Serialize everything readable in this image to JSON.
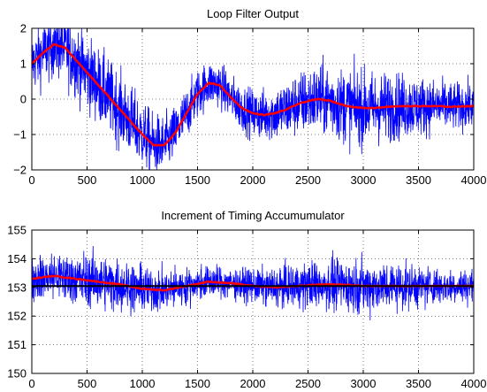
{
  "chart_data": [
    {
      "type": "line",
      "title": "Loop Filter Output",
      "xlabel": "",
      "ylabel": "",
      "xlim": [
        0,
        4000
      ],
      "ylim": [
        -2,
        2
      ],
      "xticks": [
        0,
        500,
        1000,
        1500,
        2000,
        2500,
        3000,
        3500,
        4000
      ],
      "yticks": [
        -2,
        -1,
        0,
        1,
        2
      ],
      "grid": true,
      "series": [
        {
          "color": "#0000ff",
          "style": "noisy",
          "noise_amplitude": 0.75,
          "x": [
            0,
            100,
            200,
            300,
            400,
            500,
            600,
            700,
            800,
            900,
            1000,
            1100,
            1200,
            1300,
            1400,
            1500,
            1600,
            1700,
            1800,
            1900,
            2000,
            2100,
            2200,
            2300,
            2400,
            2500,
            2600,
            2700,
            2800,
            2900,
            3000,
            3100,
            3200,
            3300,
            3400,
            3500,
            3600,
            3700,
            3800,
            3900,
            4000
          ],
          "y": [
            1.0,
            1.3,
            1.55,
            1.45,
            1.1,
            0.75,
            0.4,
            0.05,
            -0.3,
            -0.65,
            -1.0,
            -1.3,
            -1.3,
            -0.95,
            -0.4,
            0.15,
            0.45,
            0.4,
            0.05,
            -0.25,
            -0.4,
            -0.45,
            -0.4,
            -0.3,
            -0.15,
            -0.05,
            0.0,
            -0.05,
            -0.15,
            -0.22,
            -0.25,
            -0.25,
            -0.22,
            -0.2,
            -0.2,
            -0.2,
            -0.2,
            -0.2,
            -0.22,
            -0.2,
            -0.2
          ]
        },
        {
          "color": "#ff0000",
          "style": "smooth",
          "x": [
            0,
            100,
            200,
            300,
            400,
            500,
            600,
            700,
            800,
            900,
            1000,
            1100,
            1200,
            1300,
            1400,
            1500,
            1600,
            1700,
            1800,
            1900,
            2000,
            2100,
            2200,
            2300,
            2400,
            2500,
            2600,
            2700,
            2800,
            2900,
            3000,
            3100,
            3200,
            3300,
            3400,
            3500,
            3600,
            3700,
            3800,
            3900,
            4000
          ],
          "y": [
            1.0,
            1.3,
            1.55,
            1.45,
            1.1,
            0.75,
            0.4,
            0.05,
            -0.3,
            -0.65,
            -1.0,
            -1.3,
            -1.3,
            -0.95,
            -0.4,
            0.15,
            0.45,
            0.4,
            0.05,
            -0.25,
            -0.4,
            -0.45,
            -0.4,
            -0.3,
            -0.15,
            -0.05,
            0.0,
            -0.05,
            -0.15,
            -0.22,
            -0.25,
            -0.25,
            -0.22,
            -0.2,
            -0.2,
            -0.2,
            -0.2,
            -0.2,
            -0.22,
            -0.2,
            -0.2
          ]
        }
      ]
    },
    {
      "type": "line",
      "title": "Increment of Timing Accumumulator",
      "xlabel": "",
      "ylabel": "",
      "xlim": [
        0,
        4000
      ],
      "ylim": [
        150,
        155
      ],
      "xticks": [
        0,
        500,
        1000,
        1500,
        2000,
        2500,
        3000,
        3500,
        4000
      ],
      "yticks": [
        150,
        151,
        152,
        153,
        154,
        155
      ],
      "grid": true,
      "series": [
        {
          "color": "#0000ff",
          "style": "noisy",
          "noise_amplitude": 0.65,
          "x": [
            0,
            200,
            400,
            600,
            800,
            1000,
            1200,
            1400,
            1600,
            1800,
            2000,
            2200,
            2400,
            2600,
            2800,
            3000,
            3200,
            3400,
            3600,
            3800,
            4000
          ],
          "y": [
            153.3,
            153.4,
            153.3,
            153.2,
            153.1,
            152.95,
            152.9,
            153.05,
            153.2,
            153.15,
            153.05,
            153.0,
            153.05,
            153.1,
            153.1,
            153.05,
            153.05,
            153.05,
            153.05,
            153.05,
            153.05
          ]
        },
        {
          "color": "#ff0000",
          "style": "smooth",
          "x": [
            0,
            200,
            400,
            600,
            800,
            1000,
            1200,
            1400,
            1600,
            1800,
            2000,
            2200,
            2400,
            2600,
            2800,
            3000,
            3200,
            3400,
            3600,
            3800,
            4000
          ],
          "y": [
            153.3,
            153.4,
            153.3,
            153.2,
            153.1,
            152.95,
            152.9,
            153.05,
            153.2,
            153.15,
            153.05,
            153.0,
            153.05,
            153.1,
            153.1,
            153.05,
            153.05,
            153.05,
            153.05,
            153.05,
            153.05
          ]
        },
        {
          "color": "#000000",
          "style": "reference",
          "x": [
            0,
            4000
          ],
          "y": [
            153.05,
            153.05
          ]
        }
      ]
    }
  ]
}
